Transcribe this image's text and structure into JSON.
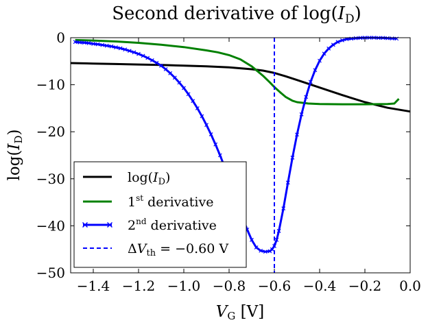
{
  "chart_data": {
    "type": "line",
    "title": "Second derivative of log(I_D)",
    "title_parts": {
      "pre": "Second derivative of log(",
      "var": "I",
      "sub": "D",
      "post": ")"
    },
    "xlabel": "V_G [V]",
    "xlabel_parts": {
      "var": "V",
      "sub": "G",
      "unit": " [V]"
    },
    "ylabel": "log(I_D)",
    "ylabel_parts": {
      "pre": "log(",
      "var": "I",
      "sub": "D",
      "post": ")"
    },
    "xlim": [
      -1.5,
      0.0
    ],
    "ylim": [
      -50,
      0
    ],
    "grid": false,
    "legend_position": "lower-left",
    "xticks": [
      -1.4,
      -1.2,
      -1.0,
      -0.8,
      -0.6,
      -0.4,
      -0.2,
      0.0
    ],
    "xtick_labels": [
      "−1.4",
      "−1.2",
      "−1.0",
      "−0.8",
      "−0.6",
      "−0.4",
      "−0.2",
      "0.0"
    ],
    "yticks": [
      0,
      -10,
      -20,
      -30,
      -40,
      -50
    ],
    "ytick_labels": [
      "0",
      "−10",
      "−20",
      "−30",
      "−40",
      "−50"
    ],
    "series": [
      {
        "name": "log(I_D)",
        "legend_label": {
          "pre": "log(",
          "var": "I",
          "sub": "D",
          "post": ")"
        },
        "color": "#000000",
        "style": "solid",
        "marker": "none",
        "x": [
          -1.5,
          -1.4,
          -1.3,
          -1.2,
          -1.1,
          -1.0,
          -0.9,
          -0.8,
          -0.7,
          -0.65,
          -0.6,
          -0.55,
          -0.5,
          -0.45,
          -0.4,
          -0.3,
          -0.2,
          -0.1,
          0.0
        ],
        "y": [
          -5.4,
          -5.5,
          -5.6,
          -5.7,
          -5.8,
          -5.95,
          -6.1,
          -6.3,
          -6.7,
          -7.0,
          -7.5,
          -8.2,
          -9.0,
          -9.8,
          -10.6,
          -12.2,
          -13.7,
          -14.9,
          -15.7
        ]
      },
      {
        "name": "1st derivative",
        "legend_label": {
          "pre": "1",
          "sup": "st",
          "post": " derivative"
        },
        "color": "#008000",
        "style": "solid",
        "marker": "none",
        "x": [
          -1.48,
          -1.4,
          -1.3,
          -1.2,
          -1.1,
          -1.0,
          -0.9,
          -0.85,
          -0.8,
          -0.75,
          -0.7,
          -0.68,
          -0.65,
          -0.62,
          -0.6,
          -0.57,
          -0.55,
          -0.52,
          -0.5,
          -0.45,
          -0.4,
          -0.3,
          -0.2,
          -0.1,
          -0.07,
          -0.05
        ],
        "y": [
          -0.5,
          -0.6,
          -0.8,
          -1.1,
          -1.5,
          -2.0,
          -2.7,
          -3.1,
          -3.7,
          -4.6,
          -6.1,
          -6.9,
          -8.1,
          -9.5,
          -10.5,
          -11.8,
          -12.6,
          -13.4,
          -13.7,
          -14.0,
          -14.1,
          -14.15,
          -14.15,
          -14.1,
          -14.0,
          -13.0
        ]
      },
      {
        "name": "2nd derivative",
        "legend_label": {
          "pre": "2",
          "sup": "nd",
          "post": " derivative"
        },
        "color": "#0000ff",
        "style": "solid",
        "marker": "x",
        "x": [
          -1.48,
          -1.46,
          -1.44,
          -1.42,
          -1.4,
          -1.38,
          -1.36,
          -1.34,
          -1.32,
          -1.3,
          -1.28,
          -1.26,
          -1.24,
          -1.22,
          -1.2,
          -1.18,
          -1.16,
          -1.14,
          -1.12,
          -1.1,
          -1.08,
          -1.06,
          -1.04,
          -1.02,
          -1.0,
          -0.98,
          -0.96,
          -0.94,
          -0.92,
          -0.9,
          -0.88,
          -0.86,
          -0.84,
          -0.82,
          -0.8,
          -0.78,
          -0.76,
          -0.74,
          -0.72,
          -0.7,
          -0.68,
          -0.66,
          -0.64,
          -0.62,
          -0.61,
          -0.6,
          -0.59,
          -0.58,
          -0.56,
          -0.54,
          -0.52,
          -0.5,
          -0.48,
          -0.46,
          -0.44,
          -0.42,
          -0.4,
          -0.38,
          -0.36,
          -0.34,
          -0.32,
          -0.3,
          -0.28,
          -0.26,
          -0.24,
          -0.22,
          -0.2,
          -0.18,
          -0.16,
          -0.14,
          -0.12,
          -0.1,
          -0.08,
          -0.06
        ],
        "y": [
          -0.9,
          -1.0,
          -1.05,
          -1.15,
          -1.3,
          -1.4,
          -1.55,
          -1.7,
          -1.85,
          -2.05,
          -2.25,
          -2.5,
          -2.8,
          -3.1,
          -3.45,
          -3.85,
          -4.3,
          -4.8,
          -5.35,
          -5.95,
          -6.7,
          -7.55,
          -8.5,
          -9.55,
          -10.7,
          -12.0,
          -13.45,
          -15.0,
          -16.7,
          -18.55,
          -20.55,
          -22.7,
          -25.0,
          -27.45,
          -30.05,
          -32.8,
          -35.6,
          -38.3,
          -40.8,
          -43.0,
          -44.6,
          -45.3,
          -45.5,
          -45.4,
          -45.0,
          -44.3,
          -43.0,
          -41.1,
          -36.3,
          -30.8,
          -25.5,
          -20.6,
          -16.3,
          -12.6,
          -9.4,
          -6.9,
          -4.9,
          -3.4,
          -2.3,
          -1.5,
          -0.9,
          -0.55,
          -0.3,
          -0.2,
          -0.1,
          -0.05,
          0.0,
          0.0,
          0.0,
          -0.05,
          -0.05,
          -0.1,
          -0.15,
          -0.2
        ]
      },
      {
        "name": "ΔV_th = −0.60 V",
        "legend_label": {
          "delta": "Δ",
          "var": "V",
          "sub": "th",
          "post": " = −0.60 V"
        },
        "color": "#0000ff",
        "style": "dashed",
        "marker": "none",
        "vline_x": -0.6
      }
    ]
  }
}
